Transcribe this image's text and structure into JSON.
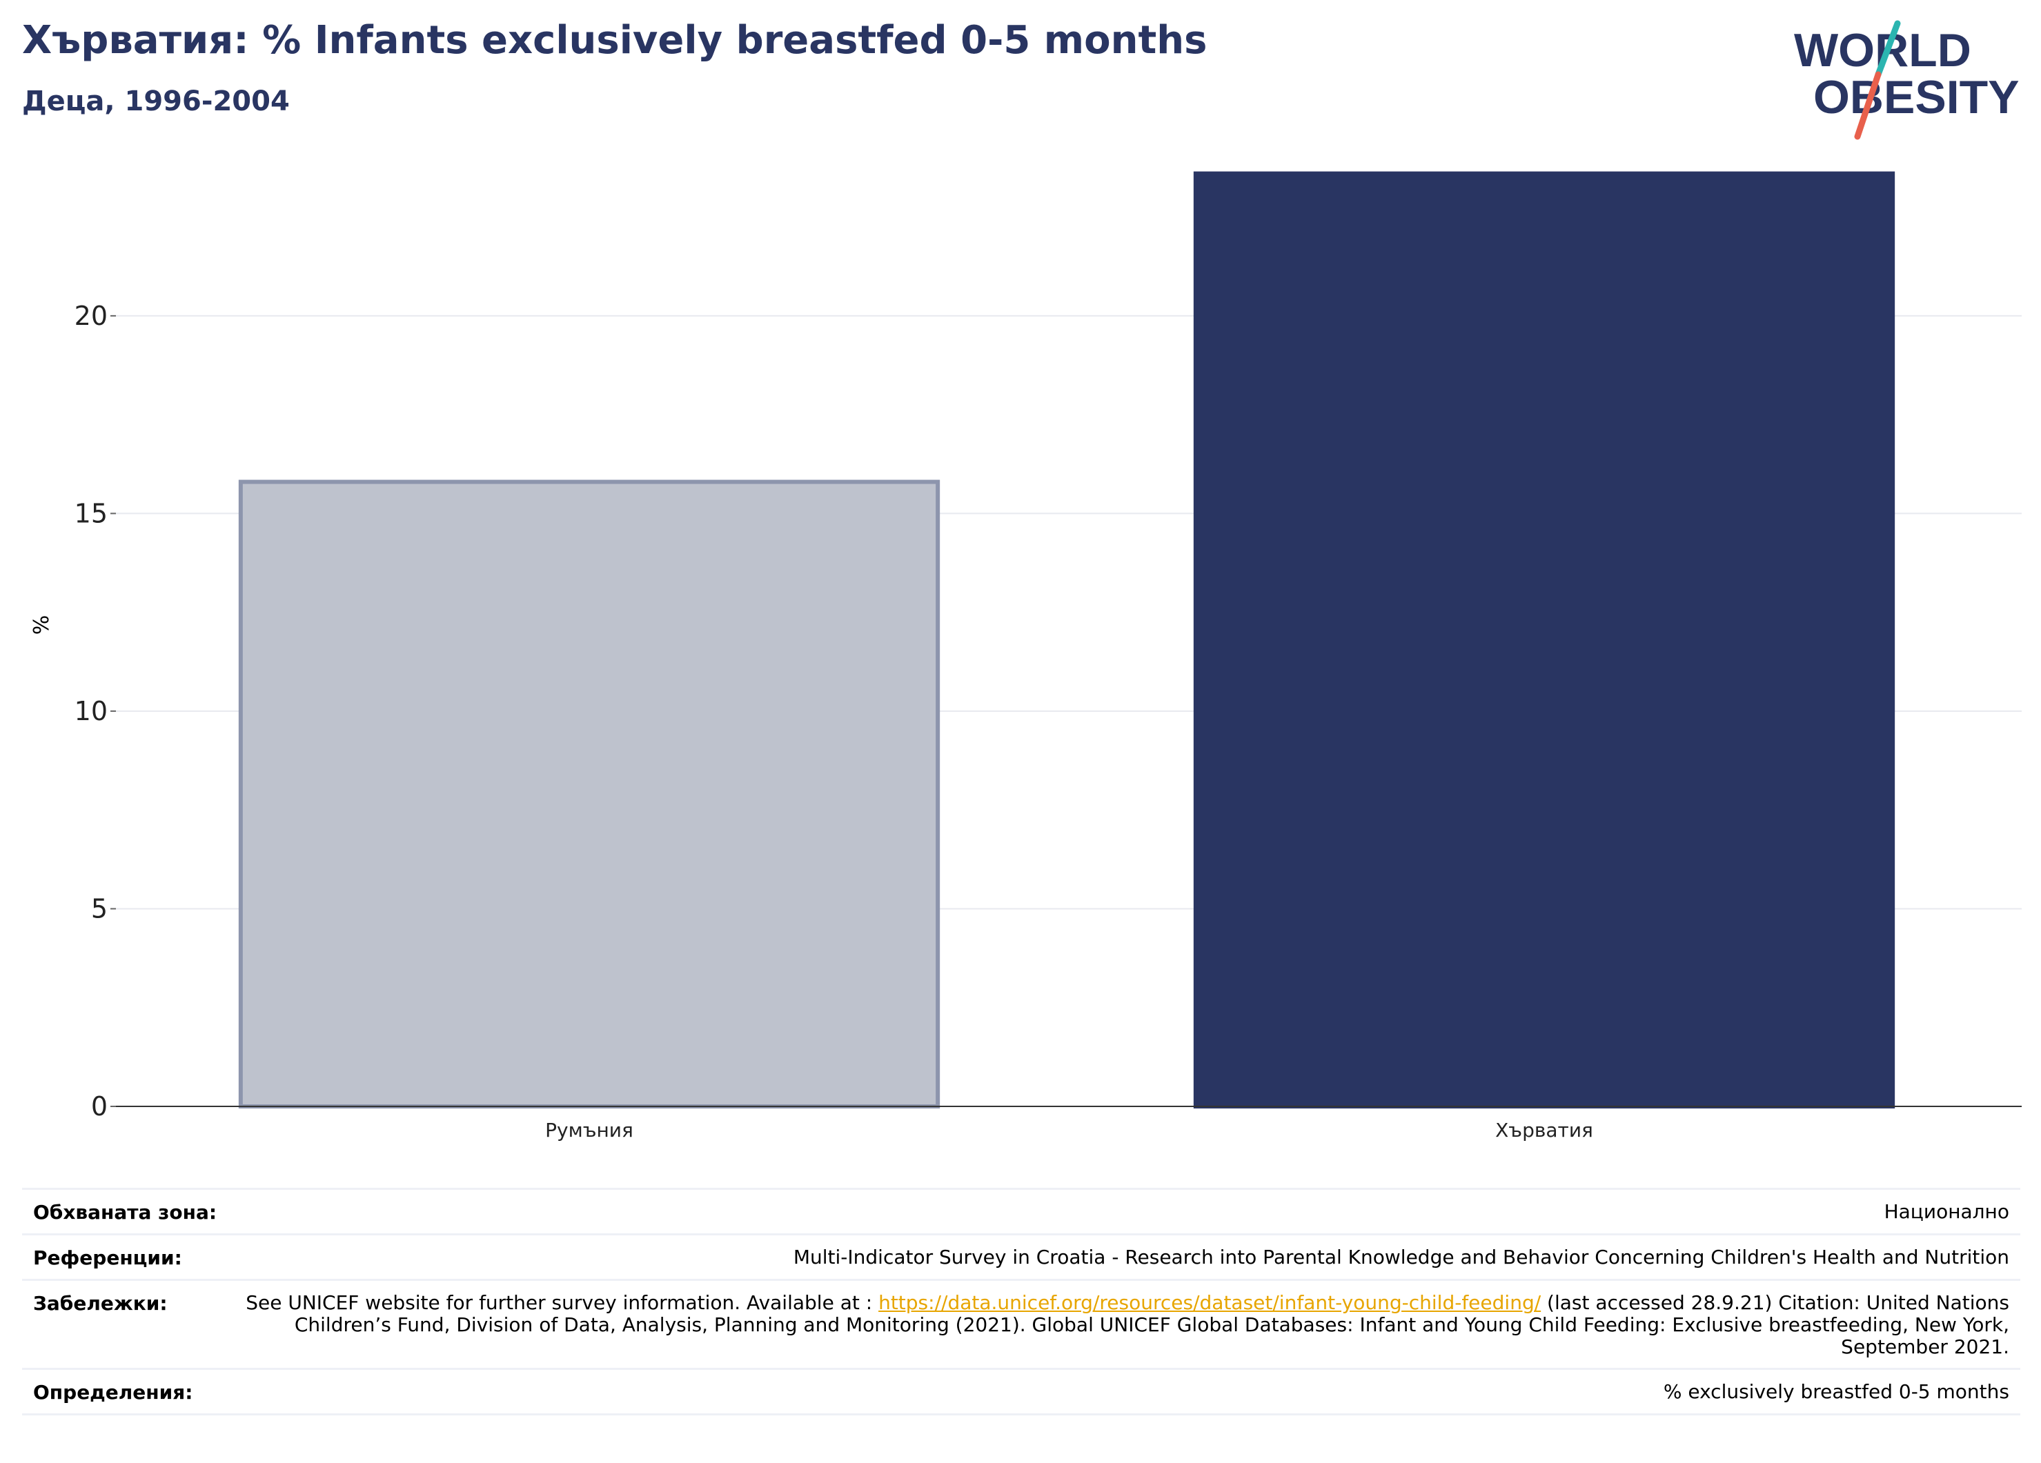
{
  "header": {
    "title": "Хърватия: % Infants exclusively breastfed 0-5 months",
    "subtitle": "Деца, 1996-2004"
  },
  "logo": {
    "line1": "WORLD",
    "line2": "OBESITY",
    "colors": {
      "text": "#293562",
      "slash_top": "#2bb5b0",
      "slash_bottom": "#e8604c"
    }
  },
  "chart_data": {
    "type": "bar",
    "categories": [
      "Румъния",
      "Хърватия"
    ],
    "values": [
      15.8,
      23.6
    ],
    "ylabel": "%",
    "ylim": [
      0,
      24.5
    ],
    "yticks": [
      0,
      5,
      10,
      15,
      20
    ],
    "grid": true,
    "bar_styles": [
      {
        "fill": "#bec2cd",
        "stroke": "#8d95ad"
      },
      {
        "fill": "#293562",
        "stroke": "#293562"
      }
    ]
  },
  "meta": {
    "coverage": {
      "label": "Обхваната зона:",
      "value": "Национално"
    },
    "references": {
      "label": "Референции:",
      "value": "Multi-Indicator Survey in Croatia - Research into Parental Knowledge and Behavior Concerning Children's Health and Nutrition"
    },
    "notes": {
      "label": "Забележки:",
      "prefix": "See UNICEF website for further survey information. Available at : ",
      "link": "https://data.unicef.org/resources/dataset/infant-young-child-feeding/",
      "suffix": " (last accessed 28.9.21) Citation: United Nations Children’s Fund, Division of Data, Analysis, Planning and Monitoring (2021). Global UNICEF Global Databases: Infant and Young Child Feeding: Exclusive breastfeeding, New York, September 2021."
    },
    "definitions": {
      "label": "Определения:",
      "value": "% exclusively breastfed 0-5 months"
    }
  }
}
